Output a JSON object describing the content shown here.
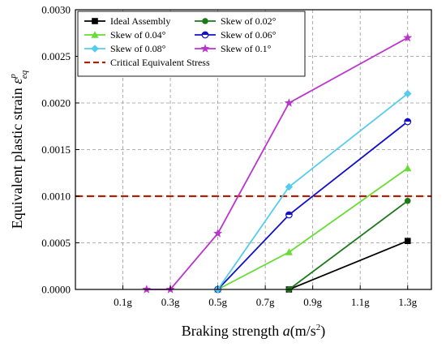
{
  "chart_data": {
    "type": "line",
    "x_ticks": [
      "0.1g",
      "0.3g",
      "0.5g",
      "0.7g",
      "0.9g",
      "1.1g",
      "1.3g"
    ],
    "x_tick_values": [
      0.1,
      0.3,
      0.5,
      0.7,
      0.9,
      1.1,
      1.3
    ],
    "xlim": [
      -0.1,
      1.4
    ],
    "y_ticks": [
      "0.0000",
      "0.0005",
      "0.0010",
      "0.0015",
      "0.0020",
      "0.0025",
      "0.0030"
    ],
    "y_tick_values": [
      0,
      0.0005,
      0.001,
      0.0015,
      0.002,
      0.0025,
      0.003
    ],
    "ylim": [
      0,
      0.003
    ],
    "xlabel_main": "Braking strength ",
    "xlabel_var": "a",
    "xlabel_unit": "(m/s",
    "xlabel_sup": "2",
    "xlabel_end": ")",
    "ylabel_main": "Equivalent plastic strain ",
    "ylabel_var": "ε",
    "ylabel_sub": "eq",
    "ylabel_sup": "p",
    "grid": true,
    "legend_position": "top-left",
    "series": [
      {
        "name": "Ideal Assembly",
        "color": "#000000",
        "marker": "square",
        "x": [
          0.8,
          1.3
        ],
        "y": [
          0.0,
          0.00052
        ]
      },
      {
        "name": "Skew of 0.02°",
        "color": "#1a7a1a",
        "marker": "circle",
        "x": [
          0.8,
          1.3
        ],
        "y": [
          0.0,
          0.00095
        ]
      },
      {
        "name": "Skew of 0.04°",
        "color": "#66dd33",
        "marker": "triangle",
        "x": [
          0.5,
          0.8,
          1.3
        ],
        "y": [
          0.0,
          0.0004,
          0.0013
        ]
      },
      {
        "name": "Skew of 0.06°",
        "color": "#1010cc",
        "marker": "half-circle",
        "x": [
          0.5,
          0.8,
          1.3
        ],
        "y": [
          0.0,
          0.0008,
          0.0018
        ]
      },
      {
        "name": "Skew of 0.08°",
        "color": "#55ccee",
        "marker": "diamond",
        "x": [
          0.5,
          0.8,
          1.3
        ],
        "y": [
          0.0,
          0.0011,
          0.0021
        ]
      },
      {
        "name": "Skew of 0.1°",
        "color": "#bb33cc",
        "marker": "star",
        "x": [
          0.2,
          0.3,
          0.5,
          0.8,
          1.3
        ],
        "y": [
          0.0,
          0.0,
          0.0006,
          0.002,
          0.0027
        ]
      }
    ],
    "reference_line": {
      "name": "Critical Equivalent Stress",
      "color": "#aa2200",
      "y": 0.001,
      "style": "dashed"
    }
  }
}
